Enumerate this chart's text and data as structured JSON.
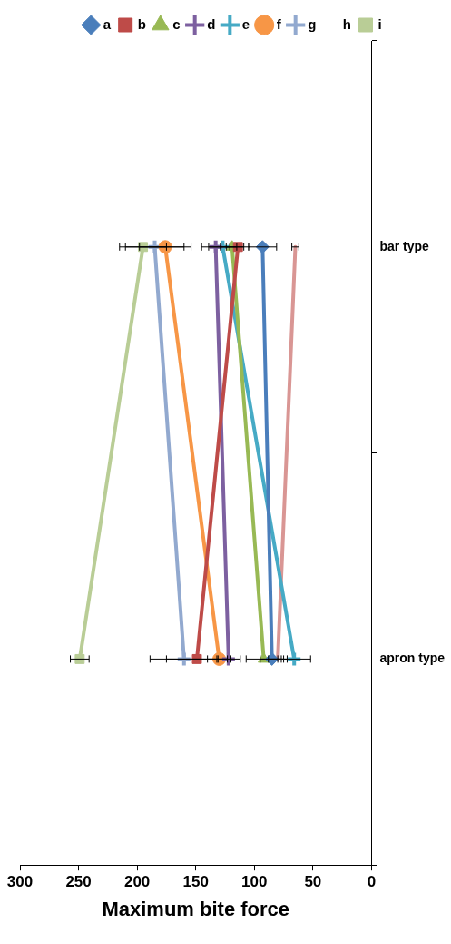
{
  "chart_data": {
    "type": "line",
    "orientation": "horizontal",
    "xlabel": "Maximum bite force",
    "categories": [
      "bar type",
      "apron type"
    ],
    "xlim": [
      300,
      0
    ],
    "xticks": [
      0,
      50,
      100,
      150,
      200,
      250,
      300
    ],
    "grid": false,
    "legend": "top",
    "line_style": "solid",
    "series": [
      {
        "name": "a",
        "color": "#4a7ebb",
        "marker": "diamond",
        "values": [
          93,
          85
        ],
        "errors": [
          12,
          10
        ]
      },
      {
        "name": "b",
        "color": "#be4b48",
        "marker": "square",
        "values": [
          114,
          149
        ],
        "errors": [
          10,
          26
        ]
      },
      {
        "name": "c",
        "color": "#98b954",
        "marker": "triangle",
        "values": [
          119,
          92
        ],
        "errors": [
          10,
          15
        ]
      },
      {
        "name": "d",
        "color": "#7d60a0",
        "marker": "cross",
        "values": [
          133,
          122
        ],
        "errors": [
          12,
          10
        ]
      },
      {
        "name": "e",
        "color": "#46aac5",
        "marker": "cross",
        "values": [
          127,
          66
        ],
        "errors": [
          12,
          14
        ]
      },
      {
        "name": "f",
        "color": "#f79646",
        "marker": "circle",
        "values": [
          176,
          130
        ],
        "errors": [
          22,
          10
        ]
      },
      {
        "name": "g",
        "color": "#92a9cf",
        "marker": "cross",
        "values": [
          185,
          160
        ],
        "errors": [
          25,
          29
        ]
      },
      {
        "name": "h",
        "color": "#d99694",
        "values": [
          65,
          80
        ],
        "errors": [
          3,
          8
        ]
      },
      {
        "name": "i",
        "color": "#b9cd96",
        "marker": "square",
        "values": [
          195,
          249
        ],
        "errors": [
          20,
          8
        ]
      }
    ]
  }
}
